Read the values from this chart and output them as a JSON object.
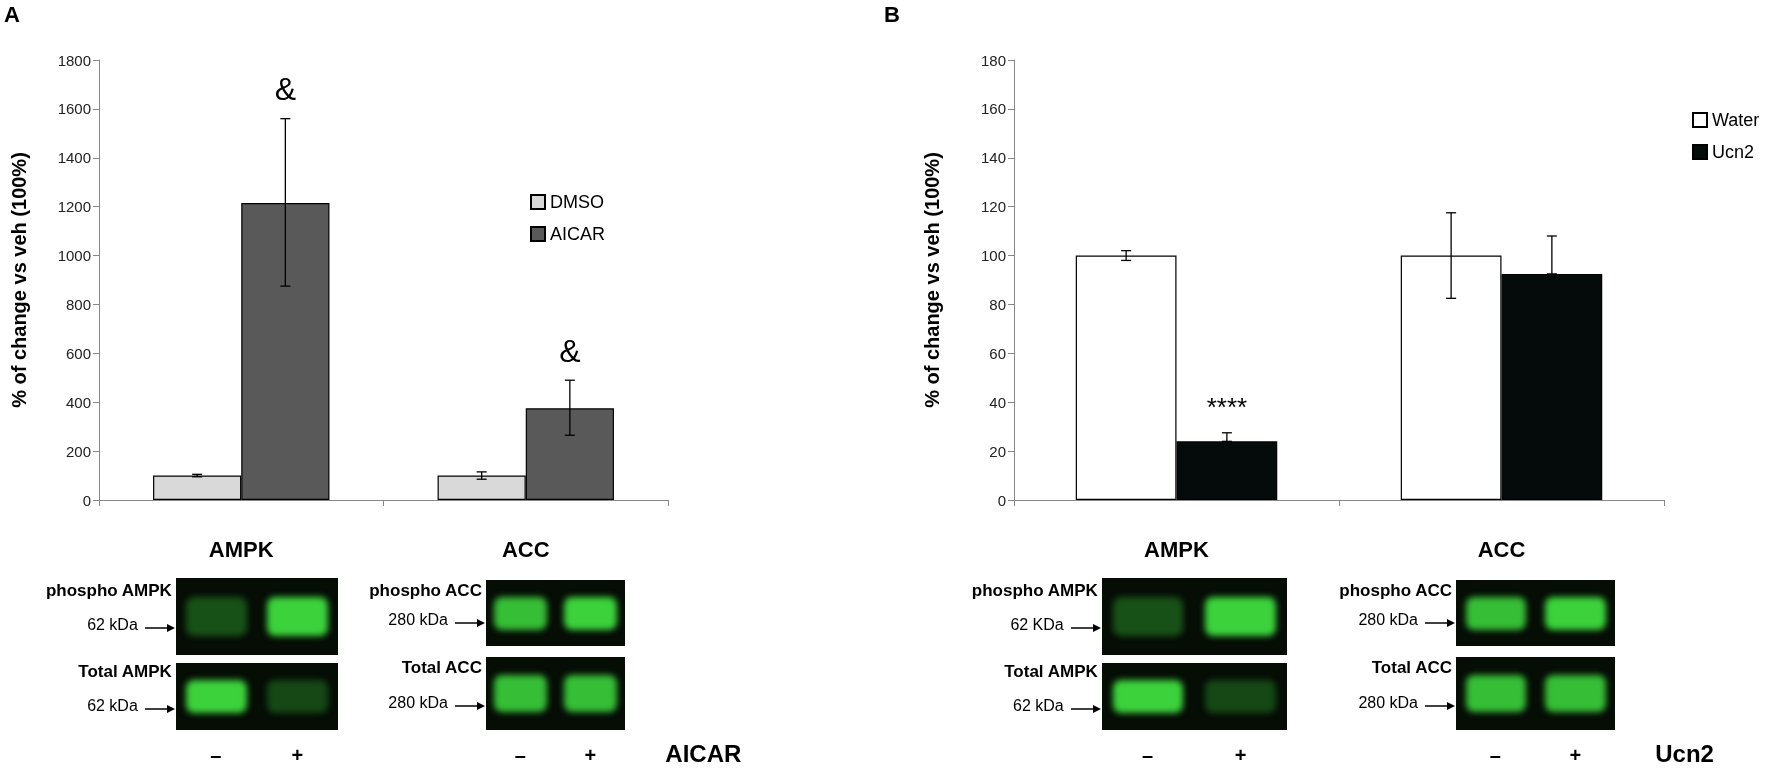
{
  "chart_data": [
    {
      "type": "bar",
      "ylabel": "% of change vs veh (100%)",
      "categories": [
        "AMPK",
        "ACC"
      ],
      "ylim": [
        0,
        1800
      ],
      "yticks": [
        0,
        200,
        400,
        600,
        800,
        1000,
        1200,
        1400,
        1600,
        1800
      ],
      "legend": "right",
      "series": [
        {
          "name": "DMSO",
          "color": "#d9d9d9",
          "values": [
            100,
            100
          ],
          "errors": [
            5,
            15
          ]
        },
        {
          "name": "AICAR",
          "color": "#595959",
          "values": [
            1215,
            375
          ],
          "errors": [
            [
              875,
              1560
            ],
            [
              265,
              490
            ]
          ]
        }
      ],
      "annotations": [
        "A",
        "phospho AMPK",
        "62 kDa",
        "Total AMPK",
        "62 kDa",
        "phospho ACC",
        "280 kDa",
        "Total ACC",
        "280 kDa",
        "–",
        "+",
        "–",
        "+",
        "AICAR",
        "&",
        "&"
      ]
    },
    {
      "type": "bar",
      "ylabel": "% of change vs veh (100%)",
      "categories": [
        "AMPK",
        "ACC"
      ],
      "ylim": [
        0,
        180
      ],
      "yticks": [
        0,
        20,
        40,
        60,
        80,
        100,
        120,
        140,
        160,
        180
      ],
      "legend": "right",
      "series": [
        {
          "name": "Water",
          "color": "#ffffff",
          "values": [
            100,
            100
          ],
          "errors": [
            2,
            17.5
          ]
        },
        {
          "name": "Ucn2",
          "color": "#050a0a",
          "values": [
            24,
            92.5
          ],
          "errors": [
            [
              24,
              27.5
            ],
            [
              92.5,
              108
            ]
          ]
        }
      ],
      "annotations": [
        "B",
        "phospho AMPK",
        "62 KDa",
        "Total AMPK",
        "62 kDa",
        "phospho ACC",
        "280 kDa",
        "Total ACC",
        "280 kDa",
        "–",
        "+",
        "–",
        "+",
        "Ucn2",
        "****"
      ]
    }
  ]
}
